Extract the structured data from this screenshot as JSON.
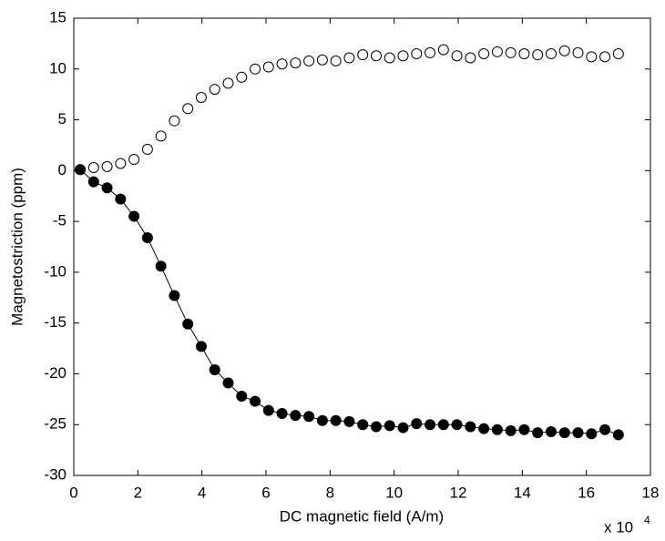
{
  "chart_data": {
    "type": "scatter",
    "x_label": "DC magnetic field (A/m)",
    "y_label": "Magnetostriction (ppm)",
    "x_multiplier": {
      "base": "x 10",
      "exponent": "4"
    },
    "xlim": [
      0,
      18
    ],
    "xticks": [
      0,
      2,
      4,
      6,
      8,
      10,
      12,
      14,
      16,
      18
    ],
    "ylim": [
      -30,
      15
    ],
    "yticks": [
      -30,
      -25,
      -20,
      -15,
      -10,
      -5,
      0,
      5,
      10,
      15
    ],
    "grid": false,
    "x": [
      0.2,
      0.62,
      1.04,
      1.46,
      1.88,
      2.3,
      2.72,
      3.14,
      3.56,
      3.98,
      4.4,
      4.82,
      5.24,
      5.66,
      6.08,
      6.5,
      6.92,
      7.34,
      7.76,
      8.18,
      8.6,
      9.02,
      9.44,
      9.86,
      10.28,
      10.7,
      11.12,
      11.54,
      11.96,
      12.38,
      12.8,
      13.22,
      13.64,
      14.06,
      14.48,
      14.9,
      15.32,
      15.74,
      16.16,
      16.58,
      17.0
    ],
    "series": [
      {
        "color": "#000000",
        "marker": "open",
        "line": false,
        "values": [
          0.1,
          0.3,
          0.4,
          0.7,
          1.1,
          2.1,
          3.4,
          4.9,
          6.1,
          7.2,
          8.0,
          8.6,
          9.2,
          10.0,
          10.2,
          10.5,
          10.6,
          10.8,
          10.9,
          10.8,
          11.1,
          11.4,
          11.3,
          11.1,
          11.3,
          11.5,
          11.6,
          11.9,
          11.3,
          11.1,
          11.5,
          11.7,
          11.6,
          11.5,
          11.4,
          11.5,
          11.8,
          11.6,
          11.2,
          11.2,
          11.5
        ]
      },
      {
        "color": "#000000",
        "marker": "filled",
        "line": true,
        "values": [
          0.1,
          -1.1,
          -1.7,
          -2.8,
          -4.5,
          -6.6,
          -9.4,
          -12.3,
          -15.1,
          -17.3,
          -19.6,
          -20.9,
          -22.2,
          -22.7,
          -23.6,
          -23.9,
          -24.1,
          -24.2,
          -24.6,
          -24.6,
          -24.7,
          -25.0,
          -25.2,
          -25.1,
          -25.3,
          -24.9,
          -25.0,
          -25.0,
          -25.0,
          -25.2,
          -25.4,
          -25.5,
          -25.6,
          -25.5,
          -25.8,
          -25.7,
          -25.8,
          -25.8,
          -25.9,
          -25.5,
          -26.0
        ]
      }
    ]
  }
}
